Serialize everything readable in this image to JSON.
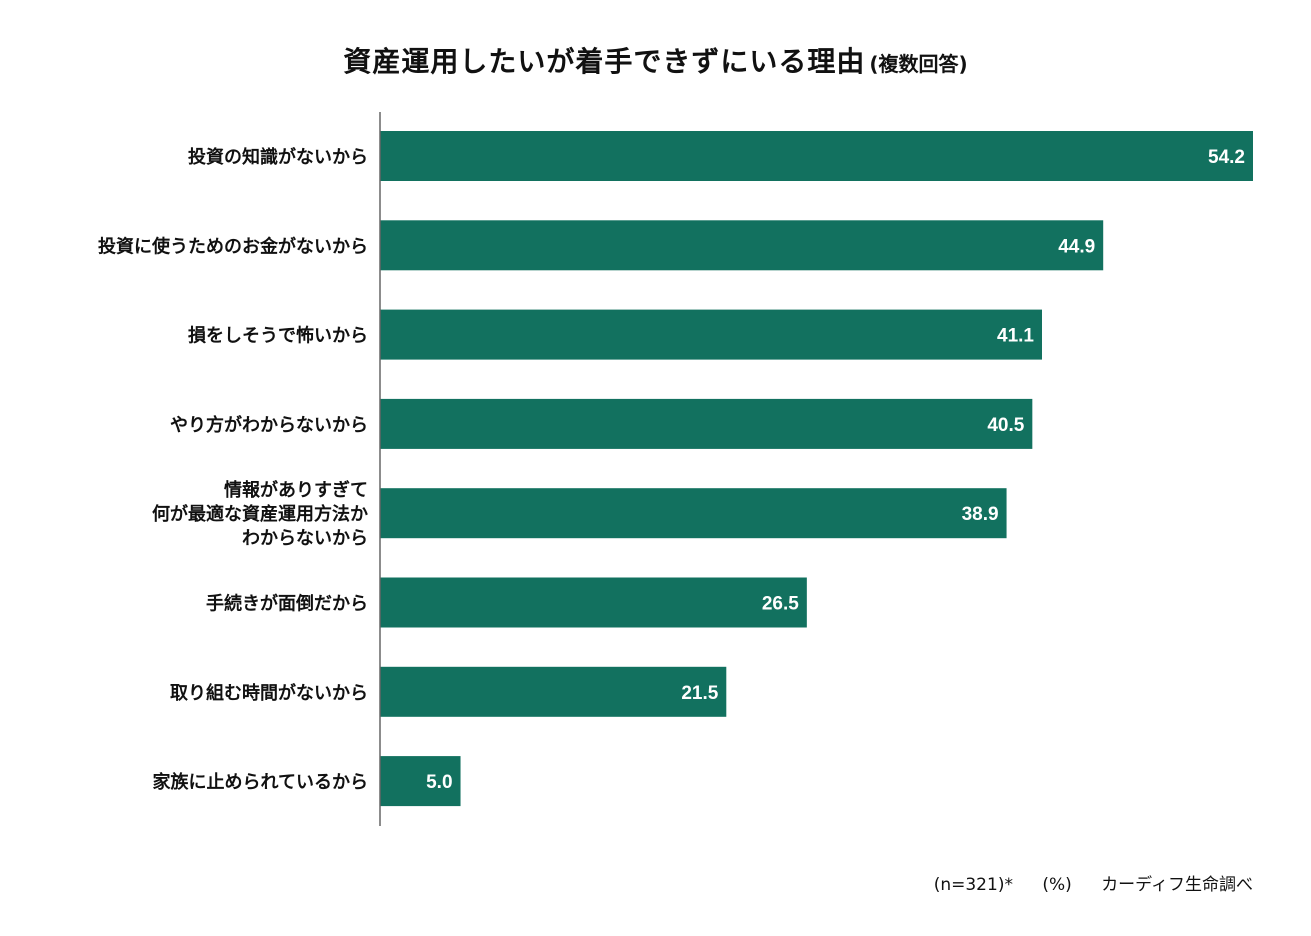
{
  "chart_data": {
    "type": "bar",
    "orientation": "horizontal",
    "title": "資産運用したいが着手できずにいる理由",
    "subtitle": "(複数回答)",
    "categories": [
      [
        "投資の知識がないから"
      ],
      [
        "投資に使うためのお金がないから"
      ],
      [
        "損をしそうで怖いから"
      ],
      [
        "やり方がわからないから"
      ],
      [
        "情報がありすぎて",
        "何が最適な資産運用方法か",
        "わからないから"
      ],
      [
        "手続きが面倒だから"
      ],
      [
        "取り組む時間がないから"
      ],
      [
        "家族に止められているから"
      ]
    ],
    "values": [
      54.2,
      44.9,
      41.1,
      40.5,
      38.9,
      26.5,
      21.5,
      5.0
    ],
    "value_labels": [
      "54.2",
      "44.9",
      "41.1",
      "40.5",
      "38.9",
      "26.5",
      "21.5",
      "5.0"
    ],
    "xlim": [
      0,
      54.2
    ],
    "xlabel": "",
    "ylabel": "",
    "grid": false,
    "bar_color": "#12715f",
    "label_color": "#ffffff",
    "axis_color": "#666666"
  },
  "footer": {
    "sample": "(n=321)*",
    "unit": "(%)",
    "source": "カーディフ生命調べ"
  }
}
